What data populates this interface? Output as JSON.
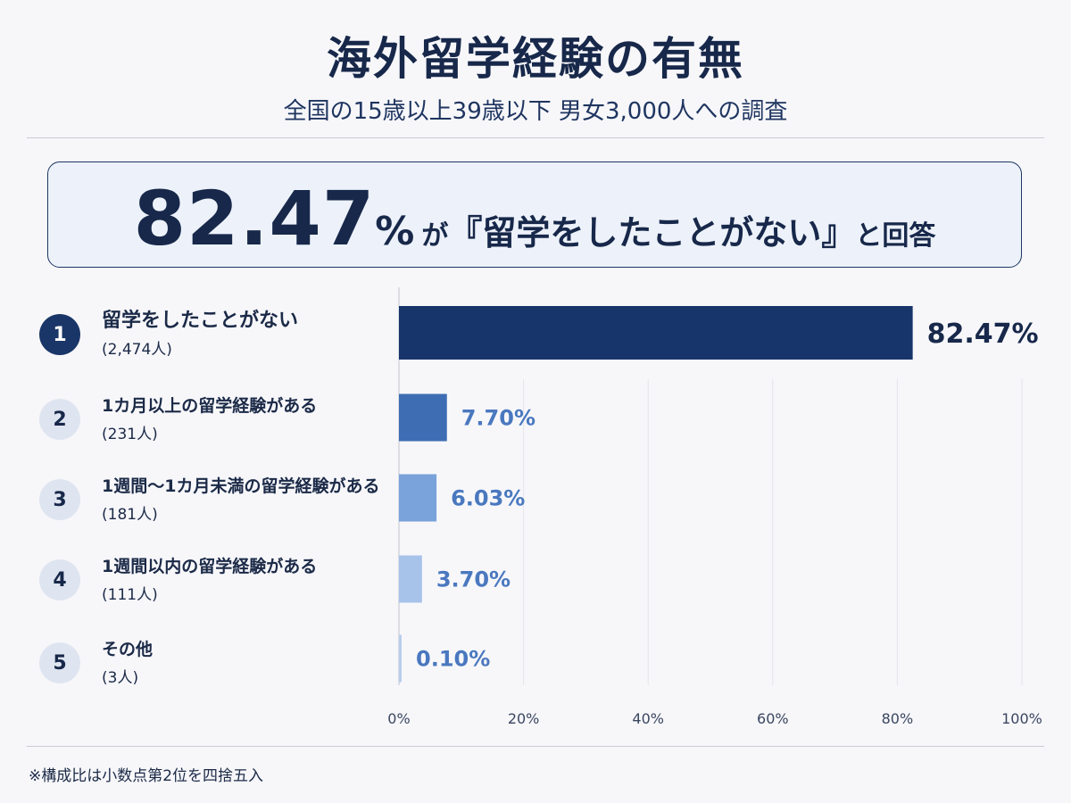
{
  "title": "海外留学経験の有無",
  "subtitle": "全国の15歳以上39歳以下 男女3,000人への調査",
  "banner": {
    "number": "82.47",
    "percent_sign": "%",
    "ga": "が",
    "quote": "『留学をしたことがない』",
    "tail": "と回答"
  },
  "chart_data": {
    "type": "bar",
    "orientation": "horizontal",
    "categories": [
      "留学をしたことがない",
      "1カ月以上の留学経験がある",
      "1週間〜1カ月未満の留学経験がある",
      "1週間以内の留学経験がある",
      "その他"
    ],
    "counts": [
      "(2,474人)",
      "(231人)",
      "(181人)",
      "(111人)",
      "(3人)"
    ],
    "ranks": [
      "1",
      "2",
      "3",
      "4",
      "5"
    ],
    "values": [
      82.47,
      7.7,
      6.03,
      3.7,
      0.1
    ],
    "value_labels": [
      "82.47%",
      "7.70%",
      "6.03%",
      "3.70%",
      "0.10%"
    ],
    "xlim": [
      0,
      100
    ],
    "x_ticks": [
      0,
      20,
      40,
      60,
      80,
      100
    ],
    "x_tick_labels": [
      "0%",
      "20%",
      "40%",
      "60%",
      "80%",
      "100%"
    ],
    "grid": true,
    "colors": [
      "#17346b",
      "#3e6db3",
      "#7aa2db",
      "#a8c3ea",
      "#b9cdec"
    ],
    "label_colors": [
      "#17284a",
      "#4a78bf",
      "#4a78bf",
      "#4a78bf",
      "#4a78bf"
    ]
  },
  "footnote": "※構成比は小数点第2位を四捨五入"
}
